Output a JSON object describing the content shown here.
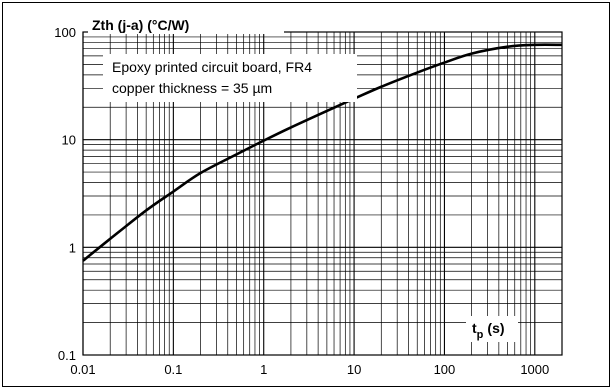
{
  "chart_data": {
    "type": "line",
    "title": "",
    "ylabel": "Zth (j-a) (°C/W)",
    "xlabel_main": "t",
    "xlabel_sub": "p",
    "xlabel_unit": "(s)",
    "xscale": "log",
    "yscale": "log",
    "xlim": [
      0.01,
      2000
    ],
    "ylim": [
      0.1,
      100
    ],
    "grid": true,
    "x_tick_labels": [
      "0.01",
      "0.1",
      "1",
      "10",
      "100",
      "1000"
    ],
    "y_tick_labels": [
      "0.1",
      "1",
      "10",
      "100"
    ],
    "annotation": [
      "Epoxy printed circuit board, FR4",
      "copper thickness = 35 µm"
    ],
    "series": [
      {
        "x": [
          0.01,
          0.02,
          0.05,
          0.1,
          0.2,
          0.5,
          1,
          2,
          5,
          10,
          20,
          50,
          100,
          200,
          500,
          1000,
          2000
        ],
        "y": [
          0.75,
          1.2,
          2.2,
          3.3,
          4.9,
          7.3,
          9.8,
          13,
          18.5,
          24,
          31,
          42,
          52,
          63,
          73,
          76,
          76
        ]
      }
    ]
  }
}
